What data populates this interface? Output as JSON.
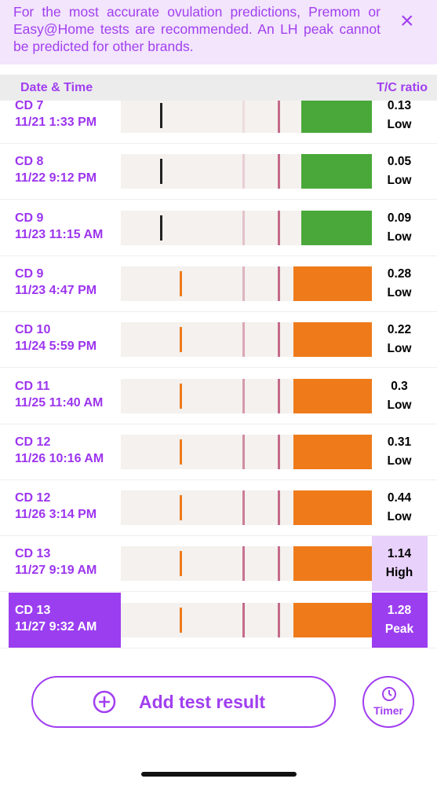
{
  "banner": {
    "text": "For the most accurate ovulation predictions, Premom or Easy@Home tests are recommended. An LH peak cannot be predicted for other brands.",
    "close": "×"
  },
  "table": {
    "headers": [
      "Date & Time",
      "T/C ratio"
    ],
    "rows": [
      [
        "CD 7",
        "11/21 1:33 PM",
        "0.13",
        "Low"
      ],
      [
        "CD 8",
        "11/22 9:12 PM",
        "0.05",
        "Low"
      ],
      [
        "CD 9",
        "11/23 11:15 AM",
        "0.09",
        "Low"
      ],
      [
        "CD 9",
        "11/23 4:47 PM",
        "0.28",
        "Low"
      ],
      [
        "CD 10",
        "11/24 5:59 PM",
        "0.22",
        "Low"
      ],
      [
        "CD 11",
        "11/25 11:40 AM",
        "0.3",
        "Low"
      ],
      [
        "CD 12",
        "11/26 10:16 AM",
        "0.31",
        "Low"
      ],
      [
        "CD 12",
        "11/26 3:14 PM",
        "0.44",
        "Low"
      ],
      [
        "CD 13",
        "11/27 9:19 AM",
        "1.14",
        "High"
      ],
      [
        "CD 13",
        "11/27 9:32 AM",
        "1.28",
        "Peak"
      ]
    ]
  },
  "buttons": {
    "add": "Add test result",
    "timer": "Timer"
  }
}
